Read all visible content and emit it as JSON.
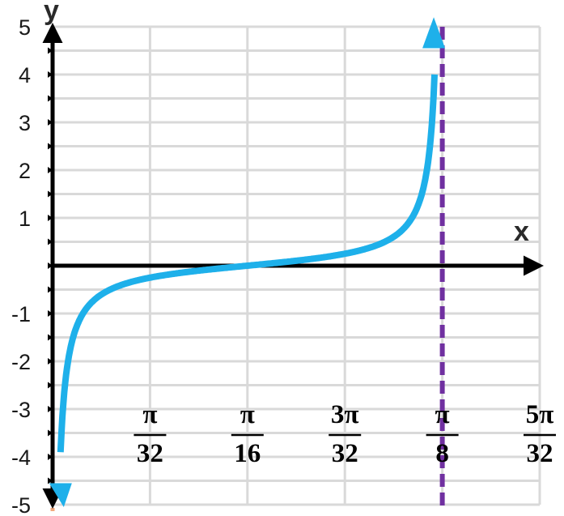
{
  "chart_data": {
    "type": "line",
    "title": "",
    "xlabel": "x",
    "ylabel": "y",
    "xlim": [
      0,
      0.49087
    ],
    "ylim": [
      -5,
      5
    ],
    "x_tick_labels": [
      {
        "num": "π",
        "den": "32",
        "value": 0.09817
      },
      {
        "num": "π",
        "den": "16",
        "value": 0.19635
      },
      {
        "num": "3π",
        "den": "32",
        "value": 0.29452
      },
      {
        "num": "π",
        "den": "8",
        "value": 0.3927
      },
      {
        "num": "5π",
        "den": "32",
        "value": 0.49087
      }
    ],
    "y_tick_labels": [
      "5",
      "4",
      "3",
      "2",
      "1",
      "-1",
      "-2",
      "-3",
      "-4",
      "-5"
    ],
    "y_tick_values": [
      5,
      4,
      3,
      2,
      1,
      -1,
      -2,
      -3,
      -4,
      -5
    ],
    "grid": true,
    "series": [
      {
        "function": "y = 0.25 * tan(8x - π/2)",
        "x": [
          0.005,
          0.01,
          0.02,
          0.03,
          0.04,
          0.05,
          0.06,
          0.07,
          0.08,
          0.09,
          0.1,
          0.11,
          0.12,
          0.13,
          0.14,
          0.15,
          0.16,
          0.17,
          0.18,
          0.19,
          0.19635,
          0.2,
          0.21,
          0.22,
          0.23,
          0.24,
          0.25,
          0.26,
          0.27,
          0.28,
          0.29,
          0.3,
          0.31,
          0.32,
          0.33,
          0.34,
          0.35,
          0.36,
          0.37,
          0.38,
          0.385,
          0.3877
        ],
        "y": [
          -6.24,
          -3.12,
          -1.55,
          -1.02,
          -0.76,
          -0.59,
          -0.48,
          -0.4,
          -0.33,
          -0.28,
          -0.24,
          -0.2,
          -0.16,
          -0.13,
          -0.1,
          -0.07,
          -0.04,
          -0.02,
          0.01,
          0.04,
          0.0,
          0.03,
          0.06,
          0.09,
          0.12,
          0.14,
          0.17,
          0.21,
          0.24,
          0.28,
          0.33,
          0.39,
          0.47,
          0.57,
          0.72,
          0.94,
          1.33,
          2.05,
          3.21,
          6.24,
          7.22,
          4.7
        ],
        "color": "#1eb0ea",
        "arrows": "both ends"
      }
    ],
    "asymptotes": [
      {
        "x": 0,
        "color": "#f2a97c",
        "style": "dashed"
      },
      {
        "x": 0.3927,
        "color": "#7030a0",
        "style": "dashed"
      }
    ],
    "axis_color": "#000000",
    "grid_color": "#d9d9d9"
  }
}
